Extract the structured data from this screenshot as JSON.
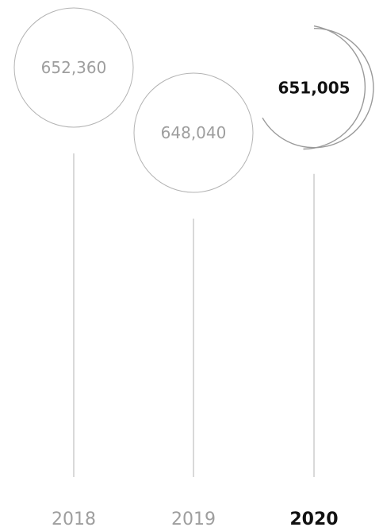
{
  "chart_data": {
    "type": "bubble-timeline",
    "categories": [
      "2018",
      "2019",
      "2020"
    ],
    "values": [
      652360,
      648040,
      651005
    ],
    "value_labels": [
      "652,360",
      "648,040",
      "651,005"
    ],
    "highlight_index": 2,
    "colors": {
      "circle_stroke": "#b3b3b3",
      "line_stroke": "#b3b3b3",
      "highlight_arc": "#9a9a9a",
      "label_muted": "#9e9e9e",
      "label_highlight": "#111111"
    }
  }
}
